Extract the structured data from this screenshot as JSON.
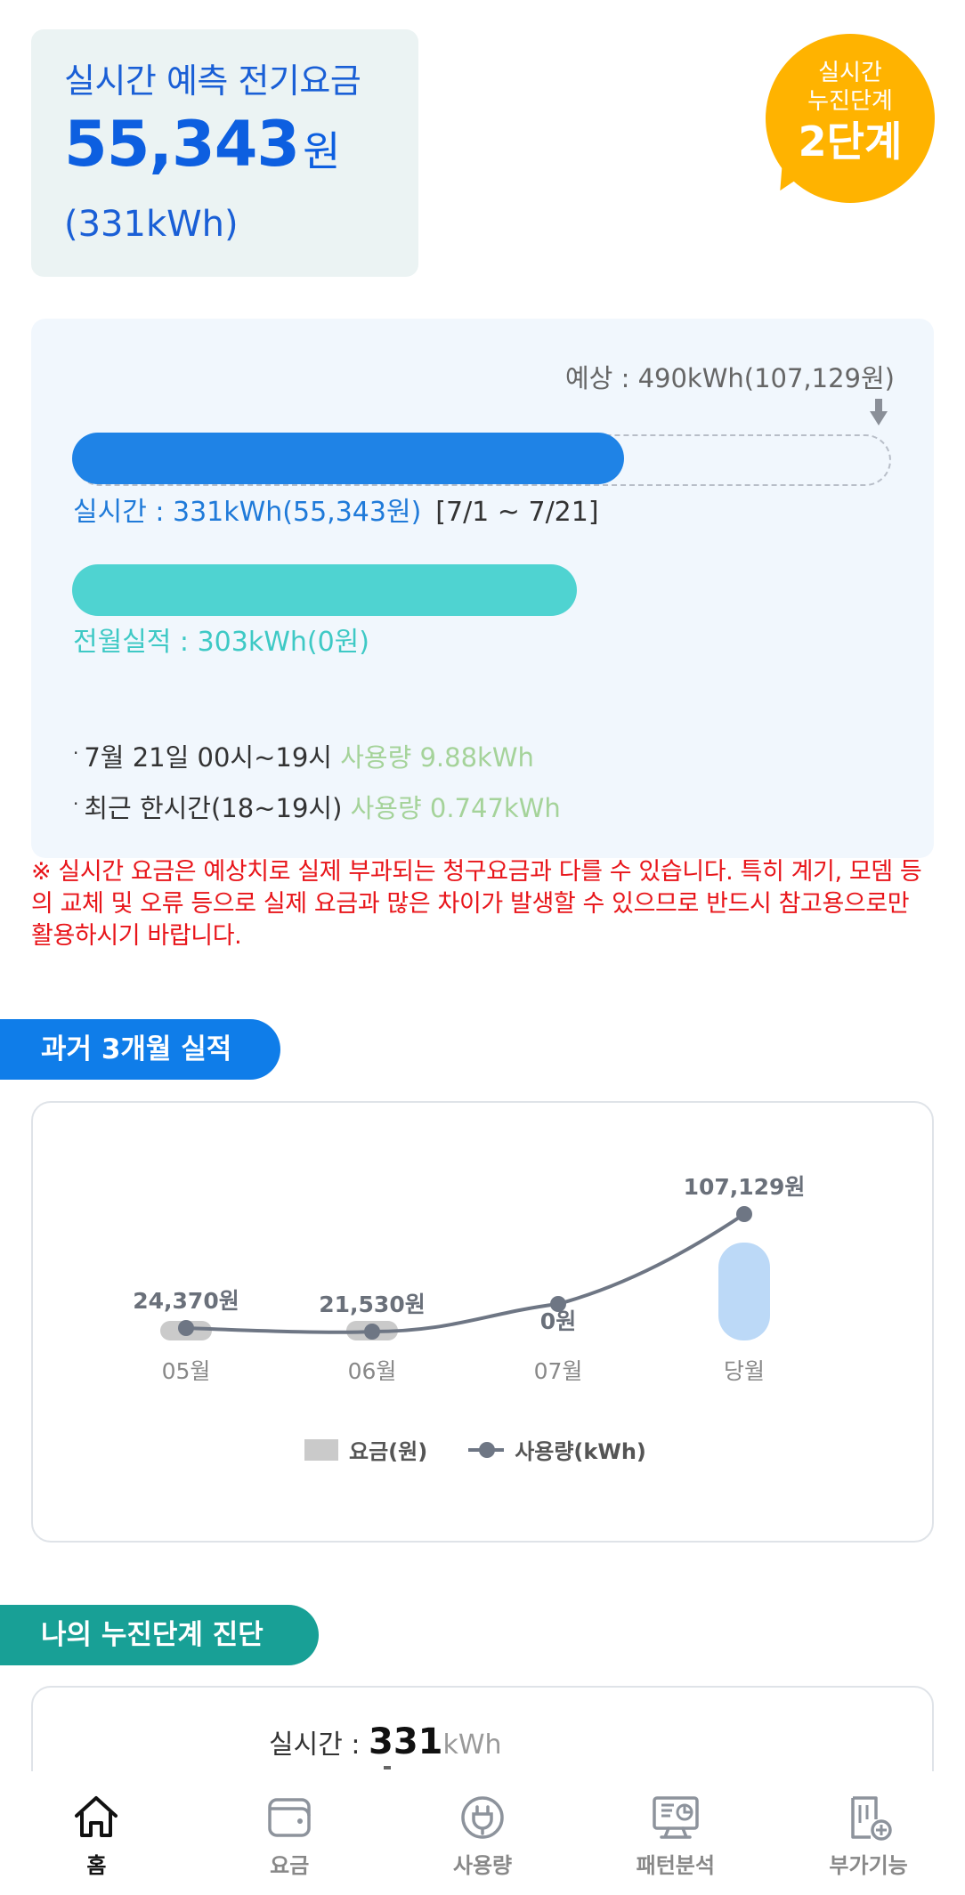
{
  "summary": {
    "title": "실시간 예측 전기요금",
    "amount": "55,343",
    "unit": "원",
    "kwh": "(331kWh)"
  },
  "badge": {
    "line1": "실시간",
    "line2": "누진단계",
    "stage": "2단계",
    "color": "#ffb300"
  },
  "usage": {
    "forecast": "예상 : 490kWh(107,129원)",
    "realtime_label": "실시간 : 331kWh(55,343원)",
    "period": "[7/1 ~ 7/21]",
    "realtime_fraction": 0.675,
    "prev_label": "전월실적 : 303kWh(0원)",
    "prev_fraction": 0.618,
    "info": [
      {
        "text": "7월 21일 00시~19시",
        "value": "사용량 9.88kWh"
      },
      {
        "text": "최근 한시간(18~19시)",
        "value": "사용량 0.747kWh"
      }
    ]
  },
  "notice": "※ 실시간 요금은 예상치로 실제 부과되는 청구요금과 다를 수 있습니다. 특히 계기, 모뎀 등의 교체 및 오류 등으로 실제 요금과 많은 차이가 발생할 수 있으므로 반드시 참고용으로만 활용하시기 바랍니다.",
  "section1": {
    "title": "과거 3개월 실적"
  },
  "chart_data": {
    "type": "bar",
    "categories": [
      "05월",
      "06월",
      "07월",
      "당월"
    ],
    "series": [
      {
        "name": "요금(원)",
        "type": "bar",
        "values": [
          24370,
          21530,
          0,
          107129
        ],
        "color": "#cacaca",
        "current_color": "#bcd9f7"
      },
      {
        "name": "사용량(kWh)",
        "type": "line",
        "values": [
          null,
          null,
          null,
          null
        ],
        "color": "#6e7684"
      }
    ],
    "data_labels": [
      "24,370원",
      "21,530원",
      "0원",
      "107,129원"
    ],
    "legend": [
      "요금(원)",
      "사용량(kWh)"
    ],
    "legend_position": "bottom"
  },
  "section2": {
    "title": "나의 누진단계 진단"
  },
  "diagnosis": {
    "label": "실시간 : ",
    "value": "331",
    "unit": "kWh"
  },
  "nav": [
    {
      "label": "홈",
      "icon": "home-icon",
      "active": true
    },
    {
      "label": "요금",
      "icon": "wallet-icon",
      "active": false
    },
    {
      "label": "사용량",
      "icon": "plug-icon",
      "active": false
    },
    {
      "label": "패턴분석",
      "icon": "monitor-chart-icon",
      "active": false
    },
    {
      "label": "부가기능",
      "icon": "document-plus-icon",
      "active": false
    }
  ]
}
